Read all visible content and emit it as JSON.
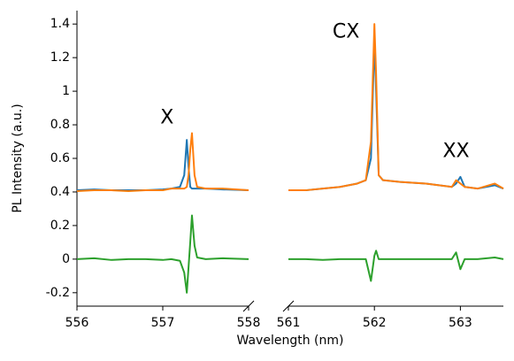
{
  "chart_data": [
    {
      "type": "line",
      "xlabel": "Wavelength (nm)",
      "ylabel": "PL Intensity (a.u.)",
      "xlim": [
        556,
        558
      ],
      "xticks": [
        556,
        557,
        558
      ],
      "ylim": [
        -0.28,
        1.48
      ],
      "yticks": [
        -0.2,
        0.0,
        0.2,
        0.4,
        0.6,
        0.8,
        1.0,
        1.2,
        1.4
      ],
      "x": [
        556.0,
        556.2,
        556.4,
        556.6,
        556.8,
        557.0,
        557.1,
        557.2,
        557.25,
        557.28,
        557.3,
        557.32,
        557.34,
        557.37,
        557.4,
        557.5,
        557.7,
        558.0
      ],
      "series": [
        {
          "color": "#1f77b4",
          "values": [
            0.41,
            0.415,
            0.41,
            0.41,
            0.41,
            0.415,
            0.42,
            0.43,
            0.5,
            0.71,
            0.55,
            0.43,
            0.42,
            0.42,
            0.42,
            0.42,
            0.415,
            0.41
          ]
        },
        {
          "color": "#ff7f0e",
          "values": [
            0.405,
            0.41,
            0.41,
            0.405,
            0.41,
            0.41,
            0.42,
            0.42,
            0.42,
            0.43,
            0.5,
            0.65,
            0.75,
            0.5,
            0.43,
            0.42,
            0.42,
            0.41
          ]
        },
        {
          "color": "#2ca02c",
          "values": [
            0.0,
            0.005,
            -0.005,
            0.0,
            0.0,
            -0.005,
            0.0,
            -0.01,
            -0.08,
            -0.2,
            -0.05,
            0.1,
            0.26,
            0.08,
            0.01,
            0.0,
            0.005,
            0.0
          ]
        }
      ],
      "annotations": [
        {
          "text": "X",
          "x": 557.05,
          "y": 0.84
        }
      ]
    },
    {
      "type": "line",
      "xlim": [
        561,
        563.5
      ],
      "xticks": [
        561,
        562,
        563
      ],
      "ylim": [
        -0.28,
        1.48
      ],
      "x": [
        561.0,
        561.2,
        561.4,
        561.6,
        561.8,
        561.9,
        561.96,
        562.0,
        562.02,
        562.05,
        562.1,
        562.3,
        562.6,
        562.9,
        562.95,
        563.0,
        563.05,
        563.2,
        563.4,
        563.5
      ],
      "series": [
        {
          "color": "#1f77b4",
          "values": [
            0.41,
            0.41,
            0.42,
            0.43,
            0.45,
            0.47,
            0.6,
            1.3,
            1.0,
            0.5,
            0.47,
            0.46,
            0.45,
            0.43,
            0.45,
            0.49,
            0.43,
            0.42,
            0.44,
            0.42
          ]
        },
        {
          "color": "#ff7f0e",
          "values": [
            0.41,
            0.41,
            0.42,
            0.43,
            0.45,
            0.47,
            0.7,
            1.4,
            1.1,
            0.5,
            0.47,
            0.46,
            0.45,
            0.43,
            0.47,
            0.45,
            0.43,
            0.42,
            0.45,
            0.42
          ]
        },
        {
          "color": "#2ca02c",
          "values": [
            0.0,
            0.0,
            -0.005,
            0.0,
            0.0,
            0.0,
            -0.13,
            0.02,
            0.05,
            0.0,
            0.0,
            0.0,
            0.0,
            0.0,
            0.04,
            -0.06,
            0.0,
            0.0,
            0.01,
            0.0
          ]
        }
      ],
      "annotations": [
        {
          "text": "CX",
          "x": 561.67,
          "y": 1.35
        },
        {
          "text": "XX",
          "x": 562.95,
          "y": 0.64
        }
      ]
    }
  ]
}
